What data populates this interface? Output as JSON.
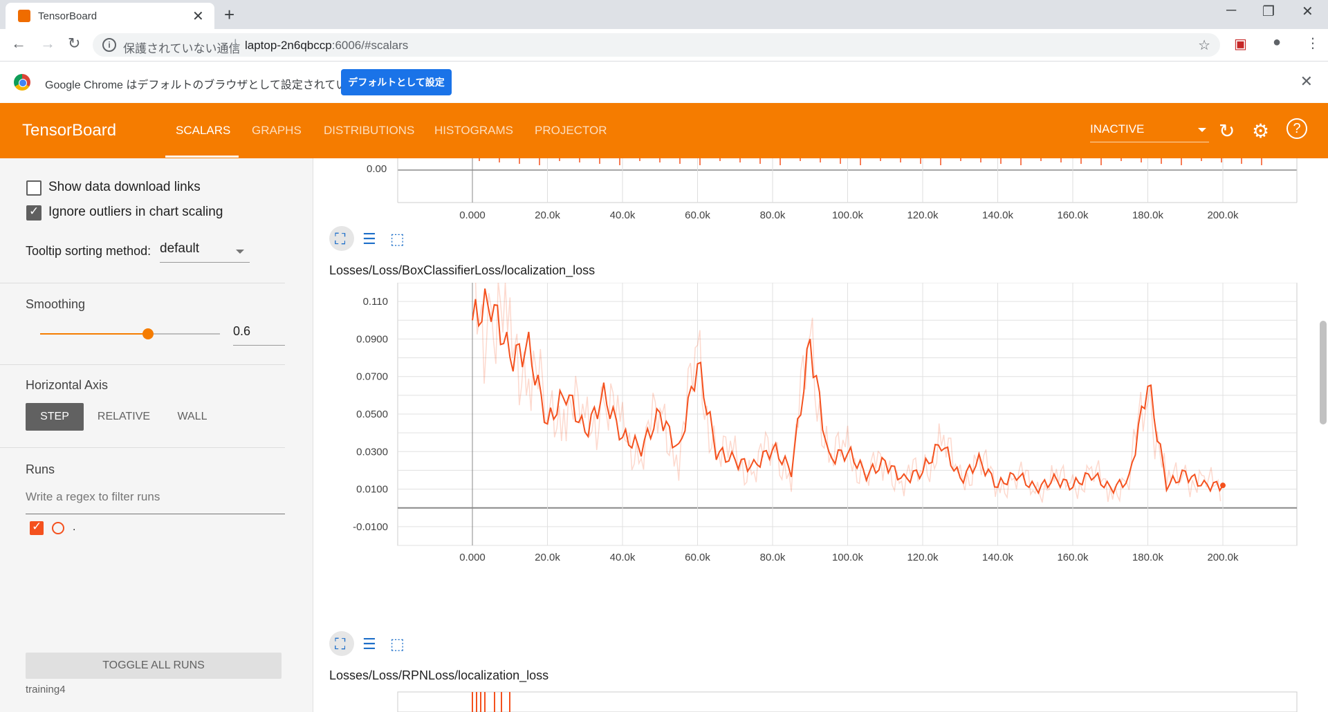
{
  "browser": {
    "tab_title": "TensorBoard",
    "tab_close": "✕",
    "new_tab": "+",
    "minimize": "─",
    "maximize": "❐",
    "close": "✕",
    "security_text": "保護されていない通信",
    "url_host": "laptop-2n6qbccp",
    "url_path": ":6006/#scalars",
    "infobar_message": "Google Chrome はデフォルトのブラウザとして設定されていません",
    "infobar_button": "デフォルトとして設定"
  },
  "header": {
    "brand": "TensorBoard",
    "tabs": [
      {
        "label": "SCALARS"
      },
      {
        "label": "GRAPHS"
      },
      {
        "label": "DISTRIBUTIONS"
      },
      {
        "label": "HISTOGRAMS"
      },
      {
        "label": "PROJECTOR"
      }
    ],
    "active_tab": "SCALARS",
    "status": "INACTIVE",
    "accent": "#f57c00"
  },
  "sidebar": {
    "show_download_links": "Show data download links",
    "ignore_outliers": "Ignore outliers in chart scaling",
    "tooltip_label": "Tooltip sorting method:",
    "tooltip_value": "default",
    "smoothing_label": "Smoothing",
    "smoothing_value": "0.6",
    "horizontal_axis_label": "Horizontal Axis",
    "axis_options": [
      "STEP",
      "RELATIVE",
      "WALL"
    ],
    "axis_selected": "STEP",
    "runs_label": "Runs",
    "filter_placeholder": "Write a regex to filter runs",
    "run_name": ".",
    "toggle_all": "TOGGLE ALL RUNS",
    "footer": "training4"
  },
  "charts": {
    "top_partial": {
      "ytick": "0.00",
      "xticks": [
        "0.000",
        "20.0k",
        "40.0k",
        "60.0k",
        "80.0k",
        "100.0k",
        "120.0k",
        "140.0k",
        "160.0k",
        "180.0k",
        "200.0k"
      ]
    },
    "main_title": "Losses/Loss/BoxClassifierLoss/localization_loss",
    "next_title": "Losses/Loss/RPNLoss/localization_loss"
  },
  "chart_data": {
    "type": "line",
    "title": "Losses/Loss/BoxClassifierLoss/localization_loss",
    "xlim": [
      0,
      220000
    ],
    "ylim": [
      -0.02,
      0.12
    ],
    "xticks": [
      "0.000",
      "20.0k",
      "40.0k",
      "60.0k",
      "80.0k",
      "100.0k",
      "120.0k",
      "140.0k",
      "160.0k",
      "180.0k",
      "200.0k"
    ],
    "yticks": [
      "0.110",
      "0.0900",
      "0.0700",
      "0.0500",
      "0.0300",
      "0.0100",
      "-0.0100"
    ],
    "series": [
      {
        "color": "#f4511e",
        "x": [
          0,
          5000,
          10000,
          15000,
          20000,
          25000,
          30000,
          35000,
          40000,
          45000,
          50000,
          55000,
          60000,
          65000,
          70000,
          75000,
          80000,
          85000,
          90000,
          95000,
          100000,
          105000,
          110000,
          115000,
          120000,
          125000,
          130000,
          135000,
          140000,
          145000,
          150000,
          155000,
          160000,
          165000,
          170000,
          175000,
          180000,
          185000,
          190000,
          195000,
          200000
        ],
        "values": [
          0.1,
          0.11,
          0.08,
          0.085,
          0.045,
          0.062,
          0.04,
          0.06,
          0.038,
          0.032,
          0.05,
          0.03,
          0.078,
          0.03,
          0.025,
          0.022,
          0.032,
          0.02,
          0.088,
          0.026,
          0.03,
          0.018,
          0.024,
          0.015,
          0.02,
          0.035,
          0.015,
          0.025,
          0.012,
          0.018,
          0.01,
          0.015,
          0.012,
          0.018,
          0.01,
          0.015,
          0.068,
          0.012,
          0.018,
          0.012,
          0.012
        ]
      }
    ]
  }
}
